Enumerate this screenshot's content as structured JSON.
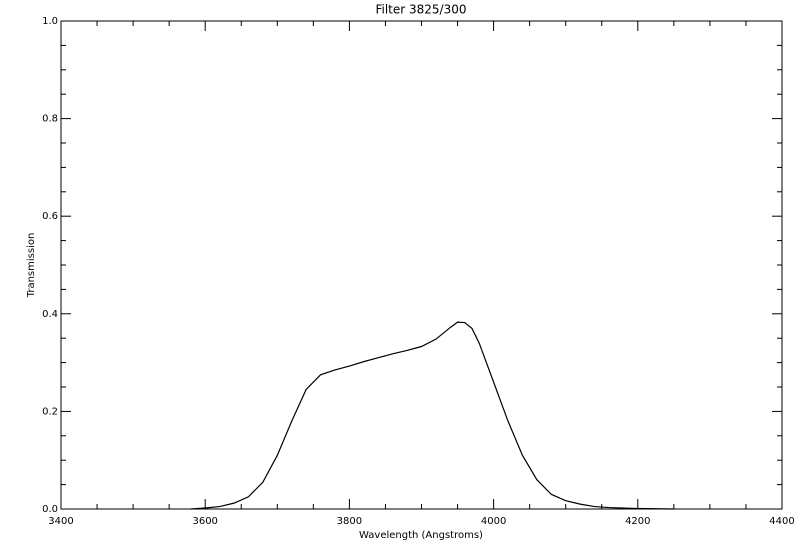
{
  "chart_data": {
    "type": "line",
    "title": "Filter 3825/300",
    "x_label": "Wavelength (Angstroms)",
    "y_label": "Transmission",
    "xlim": [
      3400,
      4400
    ],
    "xticks": [
      3400,
      3600,
      3800,
      4000,
      4200,
      4400
    ],
    "x_minor_ticks": [
      3450,
      3500,
      3550,
      3650,
      3700,
      3750,
      3850,
      3900,
      3950,
      4050,
      4100,
      4150,
      4250,
      4300,
      4350
    ],
    "ylim": [
      0,
      1
    ],
    "yticks": [
      {
        "value": 0,
        "label": "0.0"
      },
      0.2,
      0.4,
      0.6,
      0.8,
      {
        "value": 1,
        "label": "1.0"
      }
    ],
    "y_minor_ticks": [
      0.05,
      0.1,
      0.15,
      0.25,
      0.3,
      0.35,
      0.45,
      0.5,
      0.55,
      0.65,
      0.7,
      0.75,
      0.85,
      0.9,
      0.95
    ],
    "series": [
      {
        "color": "#000000",
        "x": [
          3580,
          3600,
          3620,
          3640,
          3660,
          3680,
          3700,
          3720,
          3740,
          3760,
          3780,
          3800,
          3820,
          3840,
          3860,
          3880,
          3900,
          3920,
          3940,
          3950,
          3960,
          3970,
          3980,
          4000,
          4020,
          4040,
          4060,
          4080,
          4100,
          4120,
          4140,
          4160,
          4200,
          4250
        ],
        "values": [
          0.0,
          0.002,
          0.005,
          0.012,
          0.025,
          0.055,
          0.11,
          0.18,
          0.245,
          0.275,
          0.285,
          0.293,
          0.302,
          0.31,
          0.318,
          0.325,
          0.333,
          0.348,
          0.372,
          0.383,
          0.382,
          0.37,
          0.34,
          0.26,
          0.18,
          0.11,
          0.06,
          0.03,
          0.017,
          0.01,
          0.005,
          0.003,
          0.001,
          0.0
        ]
      }
    ]
  }
}
